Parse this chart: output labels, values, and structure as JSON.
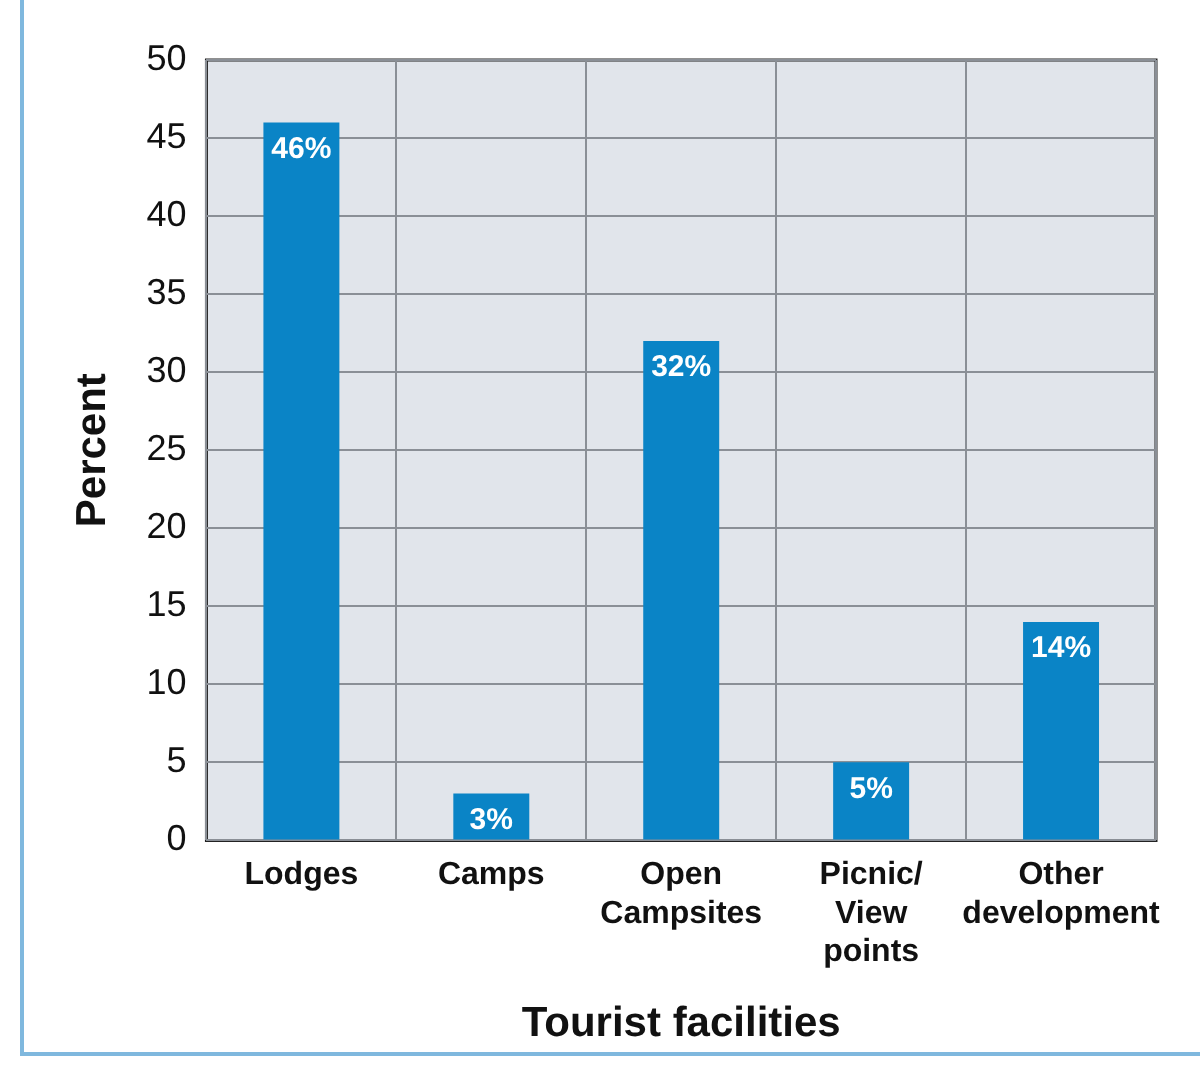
{
  "chart_data": {
    "type": "bar",
    "xlabel": "Tourist facilities",
    "ylabel": "Percent",
    "categories": [
      "Lodges",
      "Camps",
      "Open\nCampsites",
      "Picnic/\nView\npoints",
      "Other\ndevelopment"
    ],
    "values": [
      46,
      3,
      32,
      5,
      14
    ],
    "value_labels": [
      "46%",
      "3%",
      "32%",
      "5%",
      "14%"
    ],
    "color": "#0a84c6",
    "ylim": [
      0,
      50
    ],
    "yticks": [
      0,
      5,
      10,
      15,
      20,
      25,
      30,
      35,
      40,
      45,
      50
    ],
    "grid": true,
    "legend": false
  }
}
